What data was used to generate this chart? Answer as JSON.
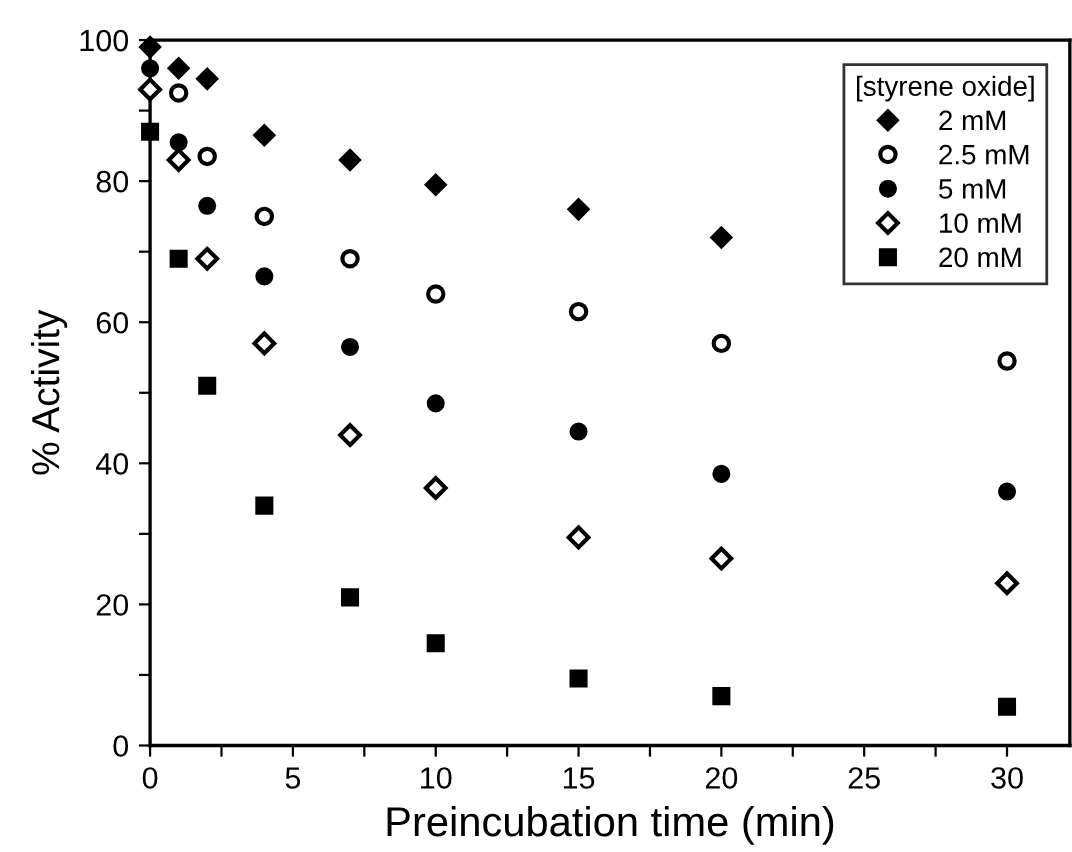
{
  "chart_data": {
    "type": "scatter",
    "xlabel": "Preincubation time (min)",
    "ylabel": "% Activity",
    "legend_title": "[styrene oxide]",
    "legend": "top right",
    "grid": false,
    "x": [
      0,
      1,
      2,
      4,
      7,
      10,
      15,
      20,
      30
    ],
    "xlim": [
      0,
      32.2
    ],
    "ylim": [
      0,
      100
    ],
    "xticks": [
      0,
      {
        "value": 2.5,
        "label": null
      },
      5,
      {
        "value": 7.5,
        "label": null
      },
      10,
      {
        "value": 12.5,
        "label": null
      },
      15,
      {
        "value": 17.5,
        "label": null
      },
      20,
      {
        "value": 22.5,
        "label": null
      },
      25,
      {
        "value": 27.5,
        "label": null
      },
      30
    ],
    "yticks": [
      0,
      {
        "value": 10,
        "label": null
      },
      20,
      {
        "value": 30,
        "label": null
      },
      40,
      {
        "value": 50,
        "label": null
      },
      60,
      {
        "value": 70,
        "label": null
      },
      80,
      {
        "value": 90,
        "label": null
      },
      100
    ],
    "series": [
      {
        "name": "2 mM",
        "color": "#000000",
        "marker": "diamond",
        "values": [
          99,
          96,
          94.5,
          86.5,
          83,
          79.5,
          76,
          72,
          null
        ]
      },
      {
        "name": "2.5 mM",
        "color": "#000000",
        "marker": "circle_open",
        "values": [
          null,
          92.5,
          83.5,
          75,
          69,
          64,
          61.5,
          57,
          54.5
        ]
      },
      {
        "name": "5 mM",
        "color": "#000000",
        "marker": "circle",
        "values": [
          96,
          85.5,
          76.5,
          66.5,
          56.5,
          48.5,
          44.5,
          38.5,
          36
        ]
      },
      {
        "name": "10 mM",
        "color": "#000000",
        "marker": "diamond_open",
        "values": [
          93,
          83,
          69,
          57,
          44,
          36.5,
          29.5,
          26.5,
          23
        ]
      },
      {
        "name": "20 mM",
        "color": "#000000",
        "marker": "square",
        "values": [
          87,
          69,
          51,
          34,
          21,
          14.5,
          9.5,
          7,
          5.5
        ]
      }
    ]
  }
}
